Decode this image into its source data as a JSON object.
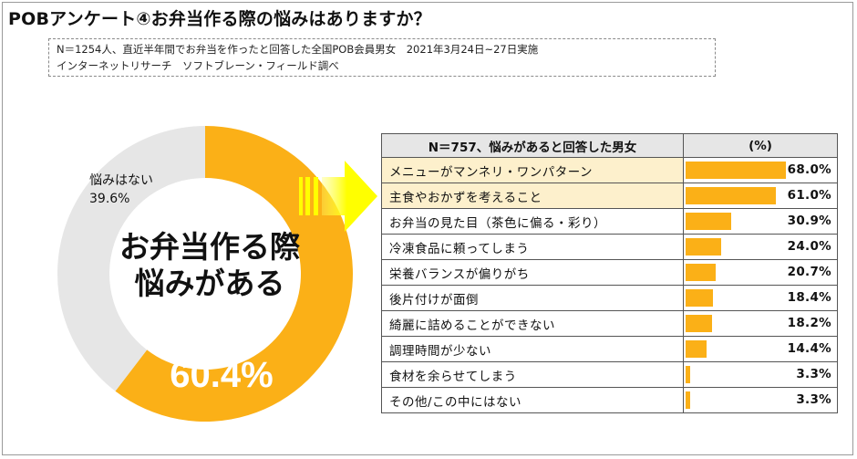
{
  "title": "POBアンケート④お弁当作る際の悩みはありますか？",
  "note": {
    "line1": "N＝1254人、直近半年間でお弁当を作ったと回答した全国POB会員男女　2021年3月24日~27日実施",
    "line2": "インターネットリサーチ　ソフトブレーン・フィールド調べ"
  },
  "colors": {
    "accent": "#fbb017",
    "donut_other": "#e6e6e6",
    "arrow": "#ffff00",
    "highlight_row": "#fdf0cc"
  },
  "chart_data": [
    {
      "type": "pie",
      "variant": "donut",
      "slices": [
        {
          "label": "お弁当作る際悩みがある",
          "value": 60.4,
          "label_lines": [
            "お弁当作る際",
            "悩みがある"
          ],
          "value_label": "60.4%",
          "color": "#fbb017"
        },
        {
          "label": "悩みはない",
          "value": 39.6,
          "value_label": "39.6%",
          "color": "#e6e6e6"
        }
      ]
    },
    {
      "type": "bar",
      "orientation": "horizontal",
      "header": {
        "category": "N＝757、悩みがあると回答した男女",
        "value": "(%)"
      },
      "xlim": [
        0,
        68
      ],
      "categories": [
        "メニューがマンネリ・ワンパターン",
        "主食やおかずを考えること",
        "お弁当の見た目（茶色に偏る・彩り）",
        "冷凍食品に頼ってしまう",
        "栄養バランスが偏りがち",
        "後片付けが面倒",
        "綺麗に詰めることができない",
        "調理時間が少ない",
        "食材を余らせてしまう",
        "その他/この中にはない"
      ],
      "values": [
        68.0,
        61.0,
        30.9,
        24.0,
        20.7,
        18.4,
        18.2,
        14.4,
        3.3,
        3.3
      ],
      "value_labels": [
        "68.0%",
        "61.0%",
        "30.9%",
        "24.0%",
        "20.7%",
        "18.4%",
        "18.2%",
        "14.4%",
        "3.3%",
        "3.3%"
      ],
      "highlighted": [
        0,
        1
      ]
    }
  ]
}
